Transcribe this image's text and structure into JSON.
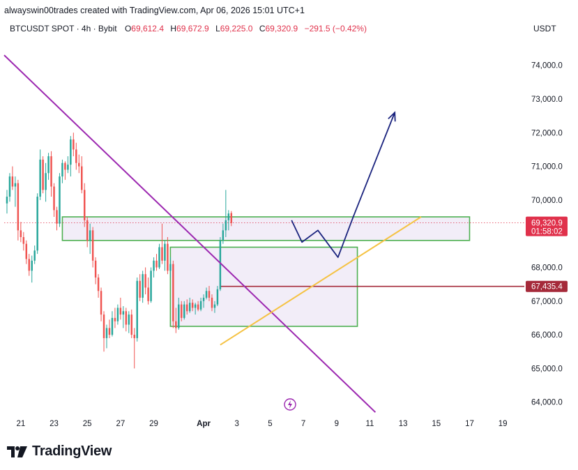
{
  "header": {
    "author_line": "alwayswin00trades created with TradingView.com, Apr 06, 2026 15:01 UTC+1"
  },
  "ohlc": {
    "symbol": "BTCUSDT SPOT · 4h · Bybit",
    "open_label": "O",
    "open": "69,612.4",
    "high_label": "H",
    "high": "69,672.9",
    "low_label": "L",
    "low": "69,225.0",
    "close_label": "C",
    "close": "69,320.9",
    "change": "−291.5 (−0.42%)"
  },
  "currency": "USDT",
  "branding": {
    "logo_text": "TradingView",
    "logo_icon": "tradingview-logo-icon",
    "flash_icon": "lightning-bolt-icon"
  },
  "colors": {
    "up": "#26a69a",
    "down": "#ef5350",
    "trendline": "#9c27b0",
    "support": "#f5c242",
    "zone_border": "#4caf50",
    "zone_fill": "#ede7f6",
    "projection": "#1a237e",
    "level_line": "#a52a3a",
    "price_tag": "#e0314b"
  },
  "chart_data": {
    "type": "candlestick",
    "timeframe": "4h",
    "ylim": [
      63600,
      74800
    ],
    "y_ticks": [
      "74,000.0",
      "73,000.0",
      "72,000.0",
      "71,000.0",
      "70,000.0",
      "68,000.0",
      "67,000.0",
      "66,000.0",
      "65,000.0",
      "64,000.0"
    ],
    "y_tick_values": [
      74000,
      73000,
      72000,
      71000,
      70000,
      68000,
      67000,
      66000,
      65000,
      64000
    ],
    "x_ticks": [
      "21",
      "23",
      "25",
      "27",
      "29",
      "Apr",
      "3",
      "5",
      "7",
      "9",
      "11",
      "13",
      "15",
      "17",
      "19"
    ],
    "x_tick_dates": [
      "2026-03-21",
      "2026-03-23",
      "2026-03-25",
      "2026-03-27",
      "2026-03-29",
      "2026-04-01",
      "2026-04-03",
      "2026-04-05",
      "2026-04-07",
      "2026-04-09",
      "2026-04-11",
      "2026-04-13",
      "2026-04-15",
      "2026-04-17",
      "2026-04-19"
    ],
    "x_range": [
      "2026-03-20",
      "2026-04-20"
    ],
    "candles": [
      {
        "o": 69900,
        "h": 70300,
        "l": 69600,
        "c": 70100
      },
      {
        "o": 70100,
        "h": 70800,
        "l": 69950,
        "c": 70700
      },
      {
        "o": 70700,
        "h": 71000,
        "l": 70300,
        "c": 70400
      },
      {
        "o": 70400,
        "h": 70700,
        "l": 69800,
        "c": 70500
      },
      {
        "o": 70500,
        "h": 70600,
        "l": 68800,
        "c": 69100
      },
      {
        "o": 69100,
        "h": 69350,
        "l": 68750,
        "c": 68900
      },
      {
        "o": 68900,
        "h": 69050,
        "l": 68500,
        "c": 68700
      },
      {
        "o": 68700,
        "h": 68800,
        "l": 68100,
        "c": 68250
      },
      {
        "o": 68250,
        "h": 68400,
        "l": 67750,
        "c": 67900
      },
      {
        "o": 67900,
        "h": 68350,
        "l": 67550,
        "c": 68200
      },
      {
        "o": 68200,
        "h": 68650,
        "l": 68100,
        "c": 68500
      },
      {
        "o": 68500,
        "h": 70200,
        "l": 68400,
        "c": 70100
      },
      {
        "o": 70100,
        "h": 71500,
        "l": 70000,
        "c": 71200
      },
      {
        "o": 71200,
        "h": 71300,
        "l": 70200,
        "c": 70300
      },
      {
        "o": 70300,
        "h": 71100,
        "l": 69950,
        "c": 70800
      },
      {
        "o": 70800,
        "h": 71400,
        "l": 70600,
        "c": 71300
      },
      {
        "o": 71300,
        "h": 71450,
        "l": 70100,
        "c": 70400
      },
      {
        "o": 70400,
        "h": 70500,
        "l": 69500,
        "c": 69700
      },
      {
        "o": 69700,
        "h": 69800,
        "l": 69100,
        "c": 69300
      },
      {
        "o": 69300,
        "h": 70800,
        "l": 69200,
        "c": 70700
      },
      {
        "o": 70700,
        "h": 71200,
        "l": 70500,
        "c": 71100
      },
      {
        "o": 71100,
        "h": 71150,
        "l": 70600,
        "c": 70900
      },
      {
        "o": 70900,
        "h": 71300,
        "l": 70800,
        "c": 71050
      },
      {
        "o": 71050,
        "h": 71900,
        "l": 70700,
        "c": 71800
      },
      {
        "o": 71800,
        "h": 72000,
        "l": 71300,
        "c": 71500
      },
      {
        "o": 71500,
        "h": 71700,
        "l": 70900,
        "c": 71100
      },
      {
        "o": 71100,
        "h": 71350,
        "l": 70800,
        "c": 71000
      },
      {
        "o": 71000,
        "h": 71300,
        "l": 70200,
        "c": 70300
      },
      {
        "o": 70300,
        "h": 70500,
        "l": 69200,
        "c": 69400
      },
      {
        "o": 69400,
        "h": 69500,
        "l": 68600,
        "c": 68800
      },
      {
        "o": 68800,
        "h": 69300,
        "l": 68400,
        "c": 69100
      },
      {
        "o": 69100,
        "h": 69200,
        "l": 68000,
        "c": 68200
      },
      {
        "o": 68200,
        "h": 68300,
        "l": 67500,
        "c": 67700
      },
      {
        "o": 67700,
        "h": 67800,
        "l": 67100,
        "c": 67300
      },
      {
        "o": 67300,
        "h": 67400,
        "l": 66400,
        "c": 66600
      },
      {
        "o": 66600,
        "h": 66700,
        "l": 65500,
        "c": 65900
      },
      {
        "o": 65900,
        "h": 66300,
        "l": 65600,
        "c": 66200
      },
      {
        "o": 66200,
        "h": 66450,
        "l": 65900,
        "c": 66000
      },
      {
        "o": 66000,
        "h": 66700,
        "l": 65950,
        "c": 66500
      },
      {
        "o": 66500,
        "h": 66800,
        "l": 66200,
        "c": 66400
      },
      {
        "o": 66400,
        "h": 66900,
        "l": 66300,
        "c": 66800
      },
      {
        "o": 66800,
        "h": 67100,
        "l": 66450,
        "c": 66600
      },
      {
        "o": 66600,
        "h": 66850,
        "l": 66200,
        "c": 66700
      },
      {
        "o": 66700,
        "h": 66800,
        "l": 66100,
        "c": 66300
      },
      {
        "o": 66300,
        "h": 66700,
        "l": 66050,
        "c": 66600
      },
      {
        "o": 66600,
        "h": 66750,
        "l": 65900,
        "c": 66000
      },
      {
        "o": 66000,
        "h": 66200,
        "l": 65000,
        "c": 65900
      },
      {
        "o": 65900,
        "h": 67700,
        "l": 65800,
        "c": 67600
      },
      {
        "o": 67600,
        "h": 67800,
        "l": 67000,
        "c": 67100
      },
      {
        "o": 67100,
        "h": 67900,
        "l": 66950,
        "c": 67800
      },
      {
        "o": 67800,
        "h": 68000,
        "l": 67200,
        "c": 67400
      },
      {
        "o": 67400,
        "h": 67700,
        "l": 66900,
        "c": 67000
      },
      {
        "o": 67000,
        "h": 68000,
        "l": 66950,
        "c": 67900
      },
      {
        "o": 67900,
        "h": 68300,
        "l": 67700,
        "c": 68200
      },
      {
        "o": 68200,
        "h": 68400,
        "l": 67900,
        "c": 68000
      },
      {
        "o": 68000,
        "h": 68700,
        "l": 67950,
        "c": 68600
      },
      {
        "o": 68600,
        "h": 69300,
        "l": 68100,
        "c": 68200
      },
      {
        "o": 68200,
        "h": 68800,
        "l": 67900,
        "c": 68700
      },
      {
        "o": 68700,
        "h": 68900,
        "l": 67800,
        "c": 67900
      },
      {
        "o": 67900,
        "h": 68300,
        "l": 67700,
        "c": 68100
      },
      {
        "o": 68100,
        "h": 68200,
        "l": 66200,
        "c": 66400
      },
      {
        "o": 66400,
        "h": 66800,
        "l": 66050,
        "c": 66200
      },
      {
        "o": 66200,
        "h": 67100,
        "l": 66150,
        "c": 66900
      },
      {
        "o": 66900,
        "h": 67000,
        "l": 66400,
        "c": 66500
      },
      {
        "o": 66500,
        "h": 67000,
        "l": 66450,
        "c": 66900
      },
      {
        "o": 66900,
        "h": 67050,
        "l": 66600,
        "c": 66700
      },
      {
        "o": 66700,
        "h": 67100,
        "l": 66650,
        "c": 66950
      },
      {
        "o": 66950,
        "h": 67050,
        "l": 66700,
        "c": 66800
      },
      {
        "o": 66800,
        "h": 66950,
        "l": 66600,
        "c": 66900
      },
      {
        "o": 66900,
        "h": 67000,
        "l": 66700,
        "c": 66750
      },
      {
        "o": 66750,
        "h": 67100,
        "l": 66700,
        "c": 67000
      },
      {
        "o": 67000,
        "h": 67200,
        "l": 66800,
        "c": 67100
      },
      {
        "o": 67100,
        "h": 67400,
        "l": 67050,
        "c": 67300
      },
      {
        "o": 67300,
        "h": 67450,
        "l": 67000,
        "c": 67100
      },
      {
        "o": 67100,
        "h": 67200,
        "l": 66700,
        "c": 66800
      },
      {
        "o": 66800,
        "h": 67000,
        "l": 66650,
        "c": 66900
      },
      {
        "o": 66900,
        "h": 67450,
        "l": 66850,
        "c": 67350
      },
      {
        "o": 67350,
        "h": 68900,
        "l": 67300,
        "c": 68800
      },
      {
        "o": 68800,
        "h": 69300,
        "l": 68700,
        "c": 69100
      },
      {
        "o": 69100,
        "h": 70300,
        "l": 68900,
        "c": 69400
      },
      {
        "o": 69400,
        "h": 69700,
        "l": 69100,
        "c": 69600
      },
      {
        "o": 69612.4,
        "h": 69672.9,
        "l": 69225.0,
        "c": 69320.9
      }
    ],
    "zones": [
      {
        "name": "resistance-zone",
        "from": "2026-03-23T12:00",
        "to": "2026-04-17",
        "low": 68800,
        "high": 69500
      },
      {
        "name": "range-zone",
        "from": "2026-03-30",
        "to": "2026-04-10T06:00",
        "low": 66250,
        "high": 68600
      }
    ],
    "trendlines": [
      {
        "name": "descending-trendline",
        "points": [
          [
            "2026-03-20",
            74300
          ],
          [
            "2026-04-11T08:00",
            63700
          ]
        ]
      },
      {
        "name": "ascending-support-line",
        "points": [
          [
            "2026-04-02",
            65700
          ],
          [
            "2026-04-14T02:00",
            69500
          ]
        ]
      }
    ],
    "horizontal_lines": [
      {
        "name": "key-level",
        "from": "2026-04-02",
        "price": 67435.4
      }
    ],
    "projection_path": [
      [
        "2026-04-06T07:00",
        69400
      ],
      [
        "2026-04-06T22:00",
        68750
      ],
      [
        "2026-04-07T21:00",
        69100
      ],
      [
        "2026-04-09T02:00",
        68300
      ],
      [
        "2026-04-10T00:00",
        69500
      ],
      [
        "2026-04-12T12:00",
        72600
      ]
    ],
    "price_labels": {
      "current_price": "69,320.9",
      "countdown": "01:58:02",
      "key_level": "67,435.4"
    },
    "grid": false
  }
}
